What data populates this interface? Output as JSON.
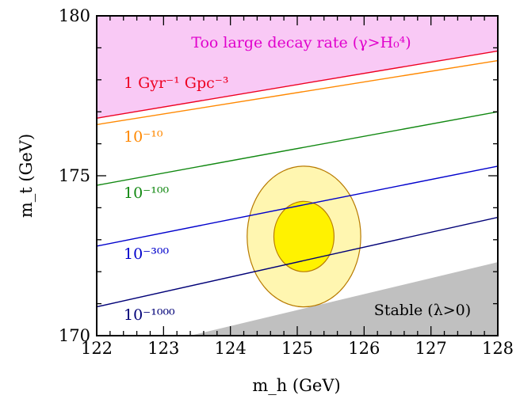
{
  "chart_data": {
    "type": "line",
    "title": "",
    "xlabel": "m_h (GeV)",
    "ylabel": "m_t (GeV)",
    "xlim": [
      122,
      128
    ],
    "ylim": [
      170,
      180
    ],
    "x_ticks": [
      "122",
      "123",
      "124",
      "125",
      "126",
      "127",
      "128"
    ],
    "y_ticks": [
      "170",
      "175",
      "180"
    ],
    "grid": false,
    "regions": [
      {
        "label": "Too large decay rate (γ>H₀⁴)",
        "color": "#f9c9f5",
        "text_color": "#e000cc",
        "upper": [
          [
            122,
            180
          ],
          [
            128,
            180
          ]
        ],
        "lower": [
          [
            122,
            176.8
          ],
          [
            128,
            178.9
          ]
        ]
      },
      {
        "label": "Stable (λ>0)",
        "color": "#c0c0c0",
        "text_color": "#000000",
        "upper": [
          [
            123.4,
            170
          ],
          [
            128,
            172.3
          ]
        ],
        "lower": [
          [
            123.4,
            170
          ],
          [
            128,
            170
          ]
        ]
      }
    ],
    "series": [
      {
        "name": "1 Gyr⁻¹ Gpc⁻³",
        "color": "#ee0022",
        "x": [
          122,
          128
        ],
        "y": [
          176.8,
          178.9
        ]
      },
      {
        "name": "10⁻¹⁰",
        "color": "#ff8800",
        "x": [
          122,
          128
        ],
        "y": [
          176.6,
          178.6
        ]
      },
      {
        "name": "10⁻¹⁰⁰",
        "color": "#118811",
        "x": [
          122,
          128
        ],
        "y": [
          174.7,
          177.0
        ]
      },
      {
        "name": "10⁻³⁰⁰",
        "color": "#0000cc",
        "x": [
          122,
          128
        ],
        "y": [
          172.8,
          175.3
        ]
      },
      {
        "name": "10⁻¹⁰⁰⁰",
        "color": "#000077",
        "x": [
          122,
          128
        ],
        "y": [
          170.9,
          173.7
        ]
      }
    ],
    "ellipses": [
      {
        "cx": 125.1,
        "cy": 173.1,
        "rx": 0.85,
        "ry": 2.2,
        "fill": "#fff6b0",
        "stroke": "#b87a00"
      },
      {
        "cx": 125.1,
        "cy": 173.1,
        "rx": 0.45,
        "ry": 1.1,
        "fill": "#fff200",
        "stroke": "#b87a00"
      }
    ]
  }
}
